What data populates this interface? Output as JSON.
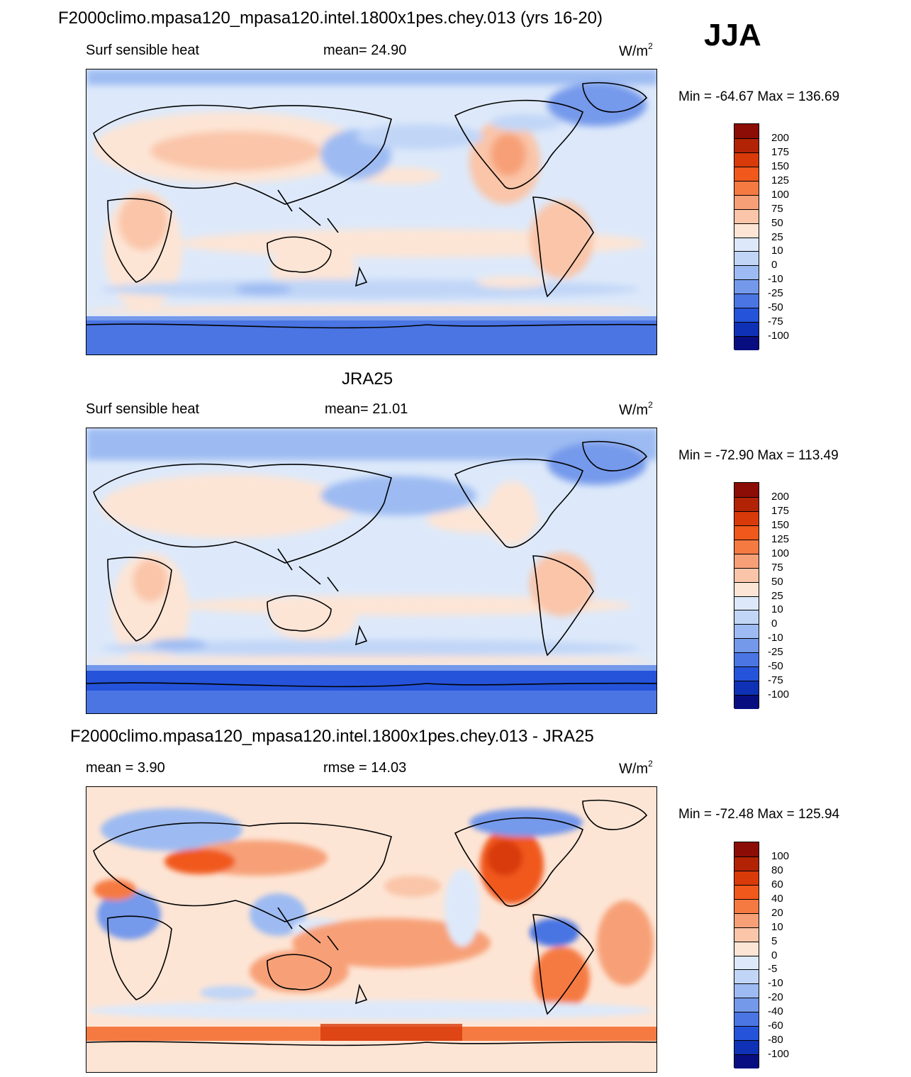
{
  "header": {
    "title": "F2000climo.mpasa120_mpasa120.intel.1800x1pes.chey.013 (yrs 16-20)",
    "season": "JJA"
  },
  "panels": [
    {
      "title": "",
      "left_label": "Surf sensible heat",
      "center_label": "mean=  24.90",
      "units_base": "W/m",
      "units_sup": "2",
      "minmax": "Min = -64.67 Max = 136.69",
      "scale": "abs"
    },
    {
      "title": "JRA25",
      "left_label": "Surf sensible heat",
      "center_label": "mean=  21.01",
      "units_base": "W/m",
      "units_sup": "2",
      "minmax": "Min = -72.90 Max = 113.49",
      "scale": "abs"
    },
    {
      "title": "F2000climo.mpasa120_mpasa120.intel.1800x1pes.chey.013 - JRA25",
      "left_label": "mean =   3.90",
      "center_label": "rmse =  14.03",
      "units_base": "W/m",
      "units_sup": "2",
      "minmax": "Min = -72.48 Max = 125.94",
      "scale": "diff"
    }
  ],
  "colorbars": {
    "abs": {
      "labels": [
        "200",
        "175",
        "150",
        "125",
        "100",
        "75",
        "50",
        "25",
        "10",
        "0",
        "-10",
        "-25",
        "-50",
        "-75",
        "-100"
      ],
      "colors": [
        "#8b0d05",
        "#b22305",
        "#d93a0a",
        "#f0581c",
        "#f57a42",
        "#f7a077",
        "#fac5a8",
        "#fde5d5",
        "#dde9fa",
        "#c1d6f7",
        "#9dbbf2",
        "#7499eb",
        "#4a75e3",
        "#2553d9",
        "#0f31b5",
        "#080e80"
      ]
    },
    "diff": {
      "labels": [
        "100",
        "80",
        "60",
        "40",
        "20",
        "10",
        "5",
        "0",
        "-5",
        "-10",
        "-20",
        "-40",
        "-60",
        "-80",
        "-100"
      ],
      "colors": [
        "#8b0d05",
        "#b22305",
        "#d93a0a",
        "#f0581c",
        "#f57a42",
        "#f7a077",
        "#fac5a8",
        "#fde5d5",
        "#dde9fa",
        "#c1d6f7",
        "#9dbbf2",
        "#7499eb",
        "#4a75e3",
        "#2553d9",
        "#0f31b5",
        "#080e80"
      ]
    }
  }
}
